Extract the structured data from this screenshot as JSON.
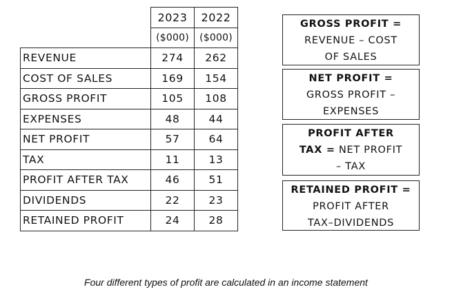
{
  "table": {
    "years": [
      "2023",
      "2022"
    ],
    "units": [
      "($000)",
      "($000)"
    ],
    "rows": [
      {
        "label": "REVENUE",
        "v2023": "274",
        "v2022": "262"
      },
      {
        "label": "COST OF SALES",
        "v2023": "169",
        "v2022": "154"
      },
      {
        "label": "GROSS PROFIT",
        "v2023": "105",
        "v2022": "108"
      },
      {
        "label": "EXPENSES",
        "v2023": "48",
        "v2022": "44"
      },
      {
        "label": "NET PROFIT",
        "v2023": "57",
        "v2022": "64"
      },
      {
        "label": "TAX",
        "v2023": "11",
        "v2022": "13"
      },
      {
        "label": "PROFIT AFTER TAX",
        "v2023": "46",
        "v2022": "51"
      },
      {
        "label": "DIVIDENDS",
        "v2023": "22",
        "v2022": "23"
      },
      {
        "label": "RETAINED PROFIT",
        "v2023": "24",
        "v2022": "28"
      }
    ]
  },
  "formulas": [
    {
      "term": "GROSS PROFIT =",
      "line1": "REVENUE – COST",
      "line2": "OF SALES"
    },
    {
      "term": "NET PROFIT =",
      "line1": "GROSS PROFIT –",
      "line2": "EXPENSES"
    },
    {
      "term": "PROFIT AFTER",
      "term2": "TAX =",
      "line1": "NET PROFIT",
      "line2": "– TAX"
    },
    {
      "term": "RETAINED PROFIT =",
      "line1": "PROFIT AFTER",
      "line2": "TAX–DIVIDENDS"
    }
  ],
  "caption": "Four different types of profit are calculated in an income statement"
}
